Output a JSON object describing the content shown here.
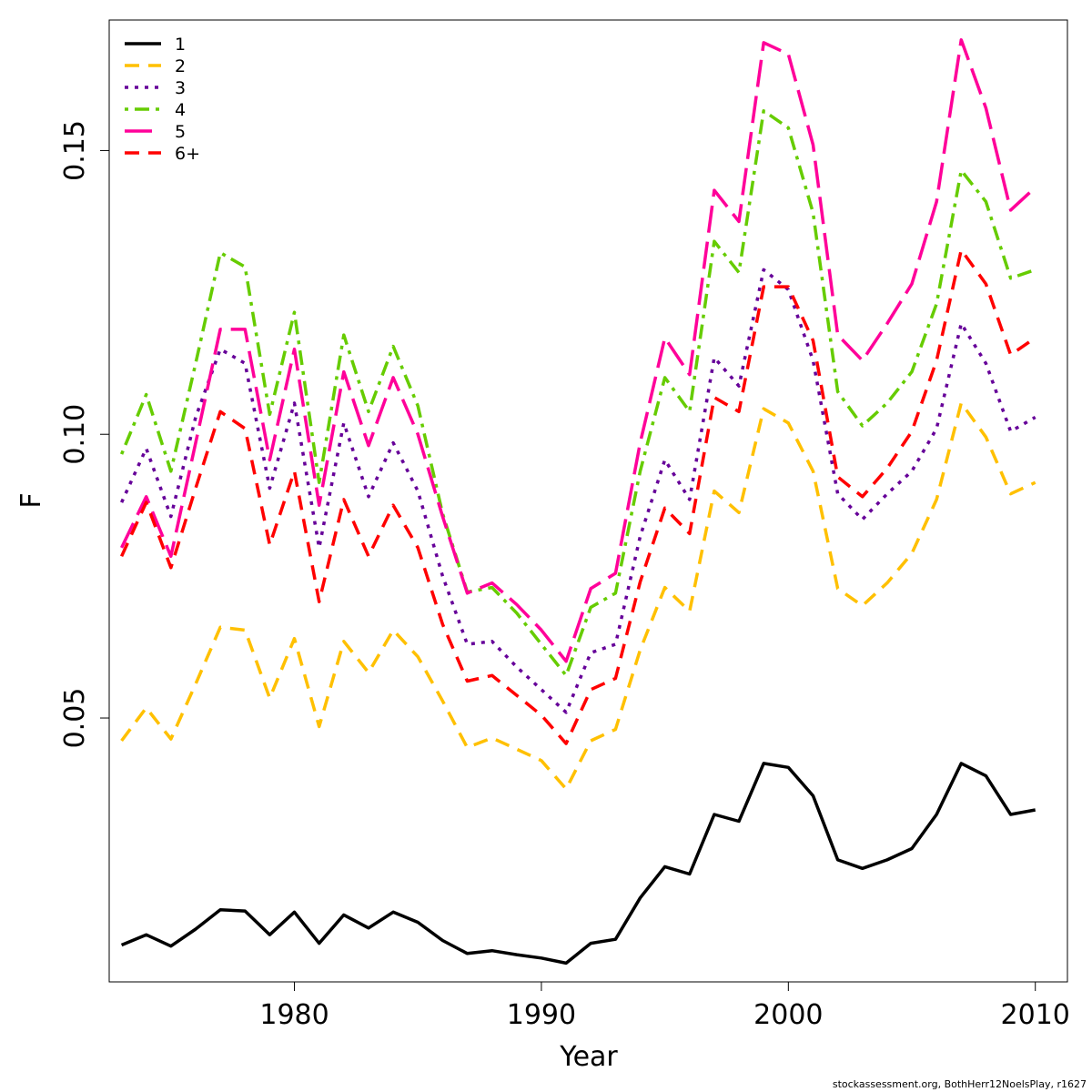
{
  "chart_data": {
    "type": "line",
    "title": "",
    "xlabel": "Year",
    "ylabel": "F",
    "xlim": [
      1972.5,
      2011.3
    ],
    "ylim": [
      0.0035,
      0.173
    ],
    "x_ticks": [
      1980,
      1990,
      2000,
      2010
    ],
    "x_tick_labels": [
      "1980",
      "1990",
      "2000",
      "2010"
    ],
    "y_ticks": [
      0.05,
      0.1,
      0.15
    ],
    "y_tick_labels": [
      "0.05",
      "0.10",
      "0.15"
    ],
    "legend_position": "top-left",
    "x": [
      1973,
      1974,
      1975,
      1976,
      1977,
      1978,
      1979,
      1980,
      1981,
      1982,
      1983,
      1984,
      1985,
      1986,
      1987,
      1988,
      1989,
      1990,
      1991,
      1992,
      1993,
      1994,
      1995,
      1996,
      1997,
      1998,
      1999,
      2000,
      2001,
      2002,
      2003,
      2004,
      2005,
      2006,
      2007,
      2008,
      2009,
      2010
    ],
    "series": [
      {
        "name": "1",
        "color": "#000000",
        "dash": "solid",
        "values": [
          0.01,
          0.0118,
          0.0098,
          0.0128,
          0.0162,
          0.016,
          0.0118,
          0.0158,
          0.0103,
          0.0153,
          0.013,
          0.0158,
          0.014,
          0.0108,
          0.0085,
          0.009,
          0.0083,
          0.0077,
          0.0068,
          0.0103,
          0.011,
          0.0183,
          0.0238,
          0.0225,
          0.033,
          0.0318,
          0.042,
          0.0413,
          0.0363,
          0.025,
          0.0235,
          0.025,
          0.027,
          0.033,
          0.042,
          0.0398,
          0.033,
          0.0338
        ]
      },
      {
        "name": "2",
        "color": "#FFC000",
        "dash": "dashed",
        "values": [
          0.046,
          0.0518,
          0.0463,
          0.056,
          0.066,
          0.0655,
          0.0535,
          0.064,
          0.0485,
          0.0635,
          0.058,
          0.0655,
          0.0608,
          0.053,
          0.0448,
          0.0465,
          0.0445,
          0.0425,
          0.0375,
          0.046,
          0.048,
          0.062,
          0.073,
          0.0688,
          0.09,
          0.0862,
          0.1045,
          0.102,
          0.0935,
          0.0728,
          0.0698,
          0.0738,
          0.079,
          0.0885,
          0.1055,
          0.0995,
          0.0895,
          0.0915
        ]
      },
      {
        "name": "3",
        "color": "#660099",
        "dash": "dotted",
        "values": [
          0.088,
          0.0975,
          0.0855,
          0.103,
          0.115,
          0.1125,
          0.0905,
          0.1055,
          0.08,
          0.102,
          0.089,
          0.0985,
          0.09,
          0.075,
          0.063,
          0.0635,
          0.059,
          0.055,
          0.051,
          0.0615,
          0.063,
          0.082,
          0.0955,
          0.0885,
          0.1135,
          0.1085,
          0.129,
          0.1255,
          0.113,
          0.0895,
          0.085,
          0.0895,
          0.0935,
          0.101,
          0.1195,
          0.1125,
          0.1005,
          0.103
        ]
      },
      {
        "name": "4",
        "color": "#66CC00",
        "dash": "dotdash",
        "values": [
          0.0965,
          0.107,
          0.0935,
          0.1125,
          0.132,
          0.1295,
          0.1035,
          0.1215,
          0.0915,
          0.1175,
          0.104,
          0.1155,
          0.105,
          0.086,
          0.0722,
          0.073,
          0.0685,
          0.063,
          0.0575,
          0.0695,
          0.072,
          0.0935,
          0.11,
          0.104,
          0.134,
          0.1285,
          0.157,
          0.154,
          0.139,
          0.1075,
          0.1015,
          0.1055,
          0.111,
          0.123,
          0.1465,
          0.141,
          0.1275,
          0.129
        ]
      },
      {
        "name": "5",
        "color": "#FF0099",
        "dash": "longdash",
        "values": [
          0.08,
          0.089,
          0.0785,
          0.0985,
          0.1185,
          0.1185,
          0.0955,
          0.115,
          0.0875,
          0.111,
          0.098,
          0.11,
          0.1,
          0.0855,
          0.072,
          0.0738,
          0.07,
          0.0655,
          0.06,
          0.0728,
          0.0755,
          0.0985,
          0.117,
          0.1105,
          0.143,
          0.1375,
          0.169,
          0.167,
          0.151,
          0.1175,
          0.113,
          0.1195,
          0.1265,
          0.141,
          0.1695,
          0.1575,
          0.1395,
          0.1435
        ]
      },
      {
        "name": "6+",
        "color": "#FF0000",
        "dash": "dashed",
        "values": [
          0.0785,
          0.088,
          0.0765,
          0.0905,
          0.104,
          0.101,
          0.0805,
          0.0935,
          0.0705,
          0.0885,
          0.0785,
          0.0875,
          0.08,
          0.0665,
          0.0565,
          0.0575,
          0.054,
          0.0505,
          0.0455,
          0.055,
          0.057,
          0.074,
          0.087,
          0.0825,
          0.1065,
          0.104,
          0.126,
          0.126,
          0.1165,
          0.0925,
          0.089,
          0.094,
          0.1005,
          0.113,
          0.1325,
          0.1265,
          0.114,
          0.117
        ]
      }
    ]
  },
  "credit": "stockassessment.org, BothHerr12NoelsPlay, r1627"
}
